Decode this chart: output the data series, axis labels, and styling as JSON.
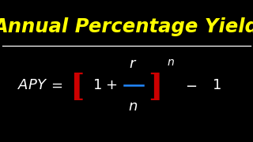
{
  "background_color": "#000000",
  "title": "Annual Percentage Yield",
  "title_color": "#FFFF00",
  "title_fontsize": 17.5,
  "formula_color": "#FFFFFF",
  "bracket_color": "#CC0000",
  "fraction_line_color": "#2288FF",
  "figsize": [
    3.2,
    1.8
  ],
  "dpi": 100
}
